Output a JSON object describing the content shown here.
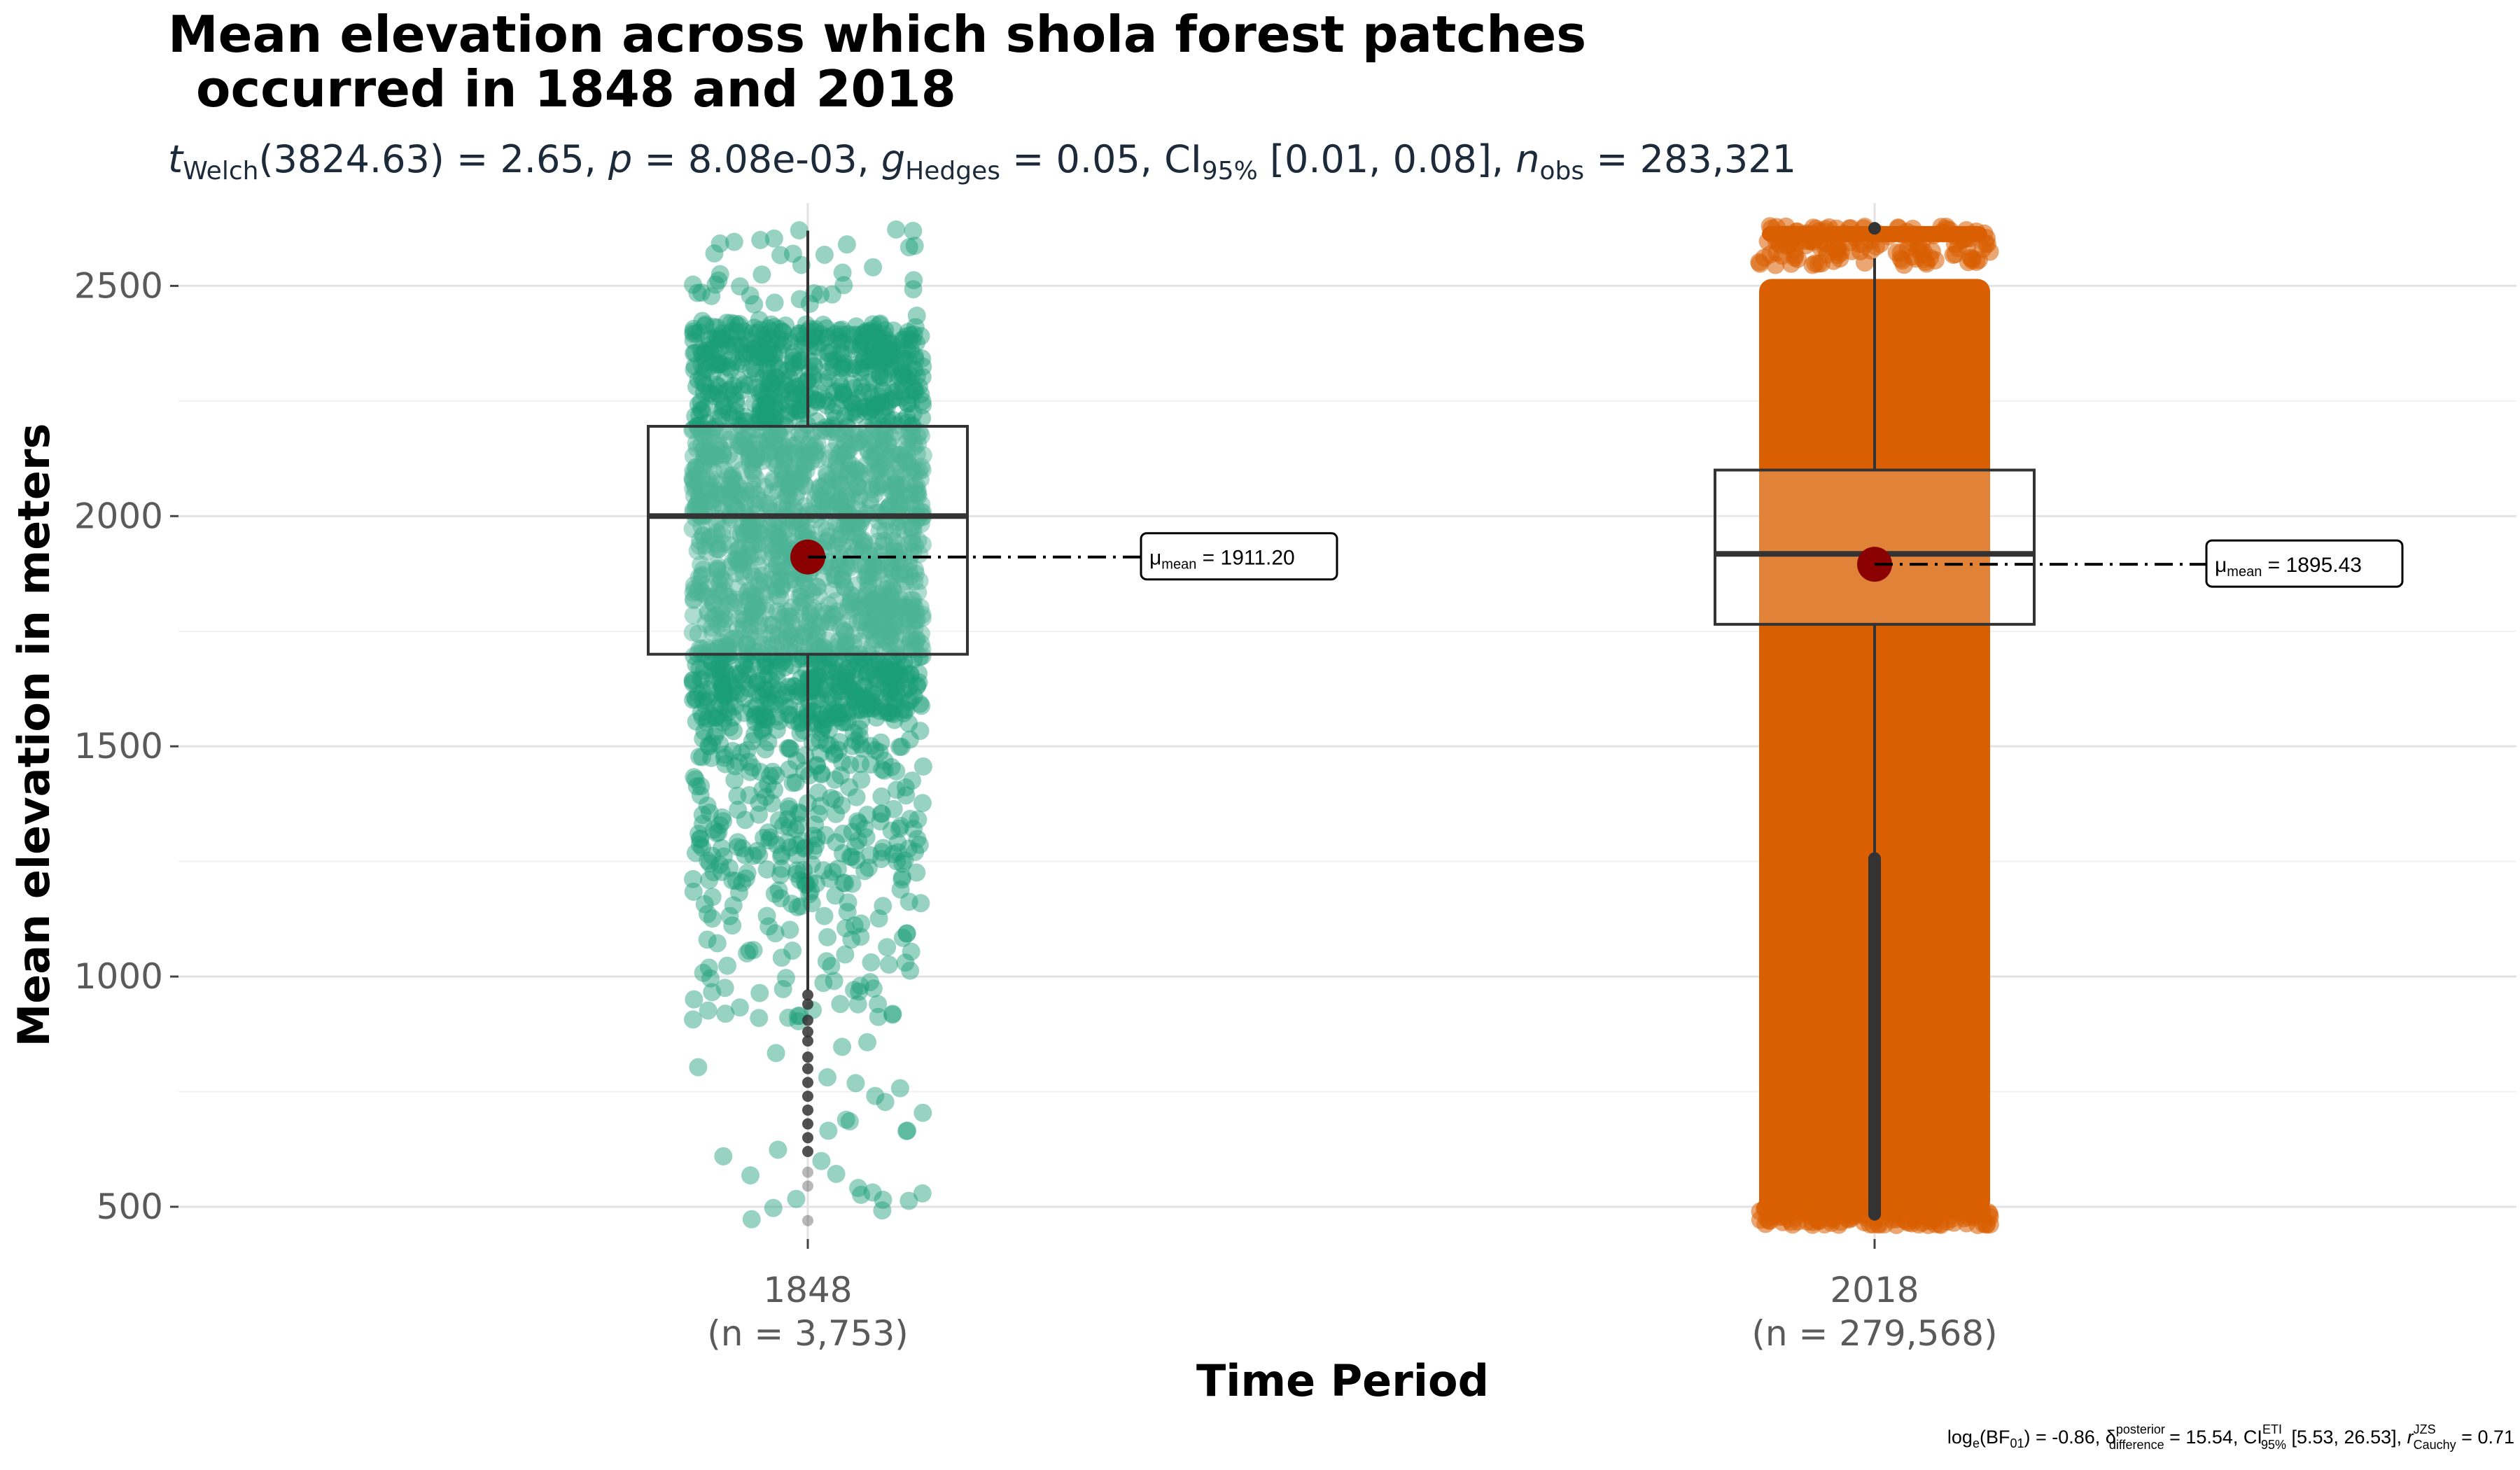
{
  "chart_data": {
    "type": "box",
    "title_line1": "Mean elevation across which shola forest patches",
    "title_line2": "occurred in 1848 and 2018",
    "subtitle": {
      "t_label": "t",
      "t_sub": "Welch",
      "t_value": "(3824.63) = 2.65, ",
      "p_label": "p",
      "p_value": " = 8.08e-03, ",
      "g_label": "g",
      "g_sub": "Hedges",
      "g_value": " = 0.05, CI",
      "ci_sub": "95%",
      "ci_value": " [0.01, 0.08], ",
      "n_label": "n",
      "n_sub": "obs",
      "n_value": " = 283,321"
    },
    "xlabel": "Time Period",
    "ylabel": "Mean elevation in meters",
    "ylim": [
      430,
      2680
    ],
    "yticks": [
      500,
      1000,
      1500,
      2000,
      2500
    ],
    "ytick_labels": [
      "500",
      "1000",
      "1500",
      "2000",
      "2500"
    ],
    "grid": true,
    "groups": [
      {
        "category": "1848",
        "n_label": "(n = 3,753)",
        "color": "#1B9E77",
        "point_alpha": 0.45,
        "box": {
          "q1": 1700,
          "median": 2000,
          "q3": 2195,
          "whisker_low": 970,
          "whisker_high": 2620
        },
        "outliers": [
          960,
          940,
          905,
          880,
          860,
          825,
          800,
          770,
          740,
          710,
          680,
          650,
          620,
          575,
          545,
          470
        ],
        "mean": 1911.2,
        "mean_label_mu": "μ",
        "mean_label_sub": "mean",
        "mean_label_value": " = 1911.20",
        "points_range": [
          470,
          2625
        ],
        "dense_range": [
          1550,
          2420
        ]
      },
      {
        "category": "2018",
        "n_label": "(n = 279,568)",
        "color": "#D95F02",
        "point_alpha": 0.55,
        "box": {
          "q1": 1765,
          "median": 1918,
          "q3": 2100,
          "whisker_low": 1270,
          "whisker_high": 2560
        },
        "outliers_range": [
          470,
          1270
        ],
        "outliers_top": [
          2625
        ],
        "mean": 1895.43,
        "mean_label_mu": "μ",
        "mean_label_sub": "mean",
        "mean_label_value": " = 1895.43",
        "points_range": [
          460,
          2630
        ]
      }
    ],
    "caption": {
      "log_prefix": "log",
      "log_sub": "e",
      "bf_part": "(BF",
      "bf_sub": "01",
      "bf_value": ") = -0.86, ",
      "delta": "δ",
      "delta_sup": "posterior",
      "delta_sub": "difference",
      "delta_value": " = 15.54, CI",
      "ci_sup": "ETI",
      "ci_sub": "95%",
      "ci_value": " [5.53, 26.53], ",
      "r_label": "r",
      "r_sup": "JZS",
      "r_sub": "Cauchy",
      "r_value": " = 0.71"
    },
    "mean_marker_color": "#8B0000"
  }
}
